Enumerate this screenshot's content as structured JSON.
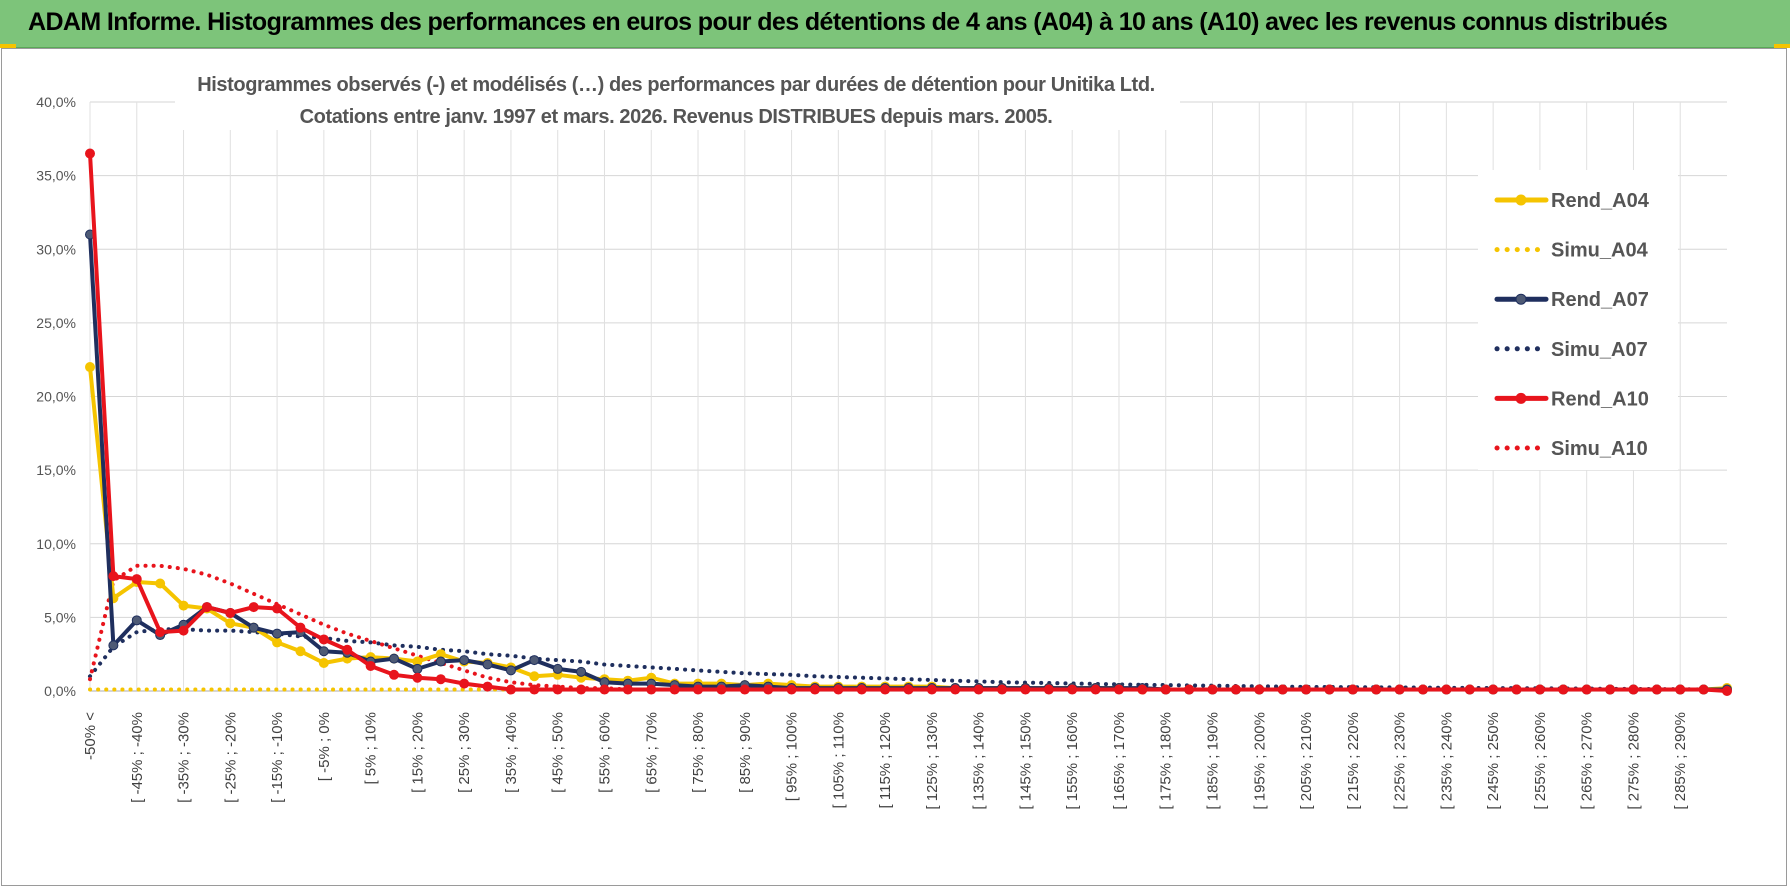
{
  "banner": {
    "title": "ADAM Informe. Histogrammes des performances en euros pour des détentions de 4 ans (A04) à 10 ans (A10) avec les revenus connus distribués",
    "bg_color": "#7dc47a"
  },
  "chart_data": {
    "type": "line",
    "title": "Histogrammes observés (-) et modélisés (…) des performances par durées de détention pour Unitika Ltd.",
    "subtitle": "Cotations entre janv. 1997 et mars. 2026.  Revenus DISTRIBUES depuis mars. 2005.",
    "xlabel": "",
    "ylabel": "",
    "ylim": [
      0,
      40
    ],
    "y_ticks": [
      "0,0%",
      "5,0%",
      "10,0%",
      "15,0%",
      "20,0%",
      "25,0%",
      "30,0%",
      "35,0%",
      "40,0%"
    ],
    "grid": true,
    "legend_position": "right",
    "categories": [
      "-50% <",
      "[ -50% ; -45%",
      "[ -45% ; -40%",
      "[ -40% ; -35%",
      "[ -35% ; -30%",
      "[ -30% ; -25%",
      "[ -25% ; -20%",
      "[ -20% ; -15%",
      "[ -15% ; -10%",
      "[ -10% ; -5%",
      "[ -5% ; 0%",
      "[ 0% ; 5%",
      "[ 5% ; 10%",
      "[ 10% ; 15%",
      "[ 15% ; 20%",
      "[ 20% ; 25%",
      "[ 25% ; 30%",
      "[ 30% ; 35%",
      "[ 35% ; 40%",
      "[ 40% ; 45%",
      "[ 45% ; 50%",
      "[ 50% ; 55%",
      "[ 55% ; 60%",
      "[ 60% ; 65%",
      "[ 65% ; 70%",
      "[ 70% ; 75%",
      "[ 75% ; 80%",
      "[ 80% ; 85%",
      "[ 85% ; 90%",
      "[ 90% ; 95%",
      "[ 95% ; 100%",
      "[ 100% ; 105%",
      "[ 105% ; 110%",
      "[ 110% ; 115%",
      "[ 115% ; 120%",
      "[ 120% ; 125%",
      "[ 125% ; 130%",
      "[ 130% ; 135%",
      "[ 135% ; 140%",
      "[ 140% ; 145%",
      "[ 145% ; 150%",
      "[ 150% ; 155%",
      "[ 155% ; 160%",
      "[ 160% ; 165%",
      "[ 165% ; 170%",
      "[ 170% ; 175%",
      "[ 175% ; 180%",
      "[ 180% ; 185%",
      "[ 185% ; 190%",
      "[ 190% ; 195%",
      "[ 195% ; 200%",
      "[ 200% ; 205%",
      "[ 205% ; 210%",
      "[ 210% ; 215%",
      "[ 215% ; 220%",
      "[ 220% ; 225%",
      "[ 225% ; 230%",
      "[ 230% ; 235%",
      "[ 235% ; 240%",
      "[ 240% ; 245%",
      "[ 245% ; 250%",
      "[ 250% ; 255%",
      "[ 255% ; 260%",
      "[ 260% ; 265%",
      "[ 265% ; 270%",
      "[ 270% ; 275%",
      "[ 275% ; 280%",
      "[ 280% ; 285%",
      "[ 285% ; 290%",
      "[ 290% ; 295%",
      "[ 295% ; 300%"
    ],
    "x_tick_labels_shown": [
      "-50% <",
      "[ -45% ; -40%",
      "[ -35% ; -30%",
      "[ -25% ; -20%",
      "[ -15% ; -10%",
      "[ -5% ; 0%",
      "[ 5% ; 10%",
      "[ 15% ; 20%",
      "[ 25% ; 30%",
      "[ 35% ; 40%",
      "[ 45% ; 50%",
      "[ 55% ; 60%",
      "[ 65% ; 70%",
      "[ 75% ; 80%",
      "[ 85% ; 90%",
      "[ 95% ; 100%",
      "[ 105% ; 110%",
      "[ 115% ; 120%",
      "[ 125% ; 130%",
      "[ 135% ; 140%",
      "[ 145% ; 150%",
      "[ 155% ; 160%",
      "[ 165% ; 170%",
      "[ 175% ; 180%",
      "[ 185% ; 190%",
      "[ 195% ; 200%",
      "[ 205% ; 210%",
      "[ 215% ; 220%",
      "[ 225% ; 230%",
      "[ 235% ; 240%",
      "[ 245% ; 250%",
      "[ 255% ; 260%",
      "[ 265% ; 270%",
      "[ 275% ; 280%",
      "[ 285% ; 290%"
    ],
    "series": [
      {
        "name": "Rend_A04",
        "style": "solid",
        "color": "#f5c400",
        "markers": true,
        "values": [
          22.0,
          6.3,
          7.4,
          7.3,
          5.8,
          5.6,
          4.6,
          4.3,
          3.3,
          2.7,
          1.9,
          2.2,
          2.3,
          2.2,
          2.0,
          2.5,
          2.0,
          1.9,
          1.6,
          1.0,
          1.1,
          0.9,
          0.8,
          0.7,
          0.9,
          0.5,
          0.5,
          0.5,
          0.4,
          0.5,
          0.4,
          0.3,
          0.3,
          0.3,
          0.3,
          0.3,
          0.3,
          0.2,
          0.2,
          0.2,
          0.2,
          0.2,
          0.2,
          0.2,
          0.2,
          0.1,
          0.1,
          0.1,
          0.1,
          0.1,
          0.1,
          0.1,
          0.1,
          0.1,
          0.1,
          0.1,
          0.1,
          0.1,
          0.1,
          0.1,
          0.1,
          0.1,
          0.1,
          0.1,
          0.1,
          0.1,
          0.1,
          0.1,
          0.1,
          0.1,
          0.2
        ]
      },
      {
        "name": "Simu_A04",
        "style": "dotted",
        "color": "#f5c400",
        "markers": false,
        "values": [
          0.1,
          0.1,
          0.1,
          0.1,
          0.1,
          0.1,
          0.1,
          0.1,
          0.1,
          0.1,
          0.1,
          0.1,
          0.1,
          0.1,
          0.1,
          0.1,
          0.1,
          0.1,
          0.1,
          0.1,
          0.1,
          0.1,
          0.1,
          0.1,
          0.1,
          0.1,
          0.1,
          0.1,
          0.1,
          0.1,
          0.1,
          0.1,
          0.1,
          0.1,
          0.1,
          0.1,
          0.1,
          0.1,
          0.1,
          0.1,
          0.1,
          0.1,
          0.1,
          0.1,
          0.1,
          0.1,
          0.1,
          0.1,
          0.1,
          0.1,
          0.1,
          0.1,
          0.1,
          0.1,
          0.1,
          0.1,
          0.1,
          0.1,
          0.1,
          0.1,
          0.1,
          0.1,
          0.1,
          0.1,
          0.1,
          0.1,
          0.1,
          0.1,
          0.1,
          0.1,
          0.1
        ]
      },
      {
        "name": "Rend_A07",
        "style": "solid",
        "color": "#1f2f5e",
        "markers": true,
        "values": [
          31.0,
          3.1,
          4.8,
          3.8,
          4.5,
          5.7,
          5.3,
          4.3,
          3.9,
          4.0,
          2.7,
          2.6,
          2.0,
          2.2,
          1.5,
          2.0,
          2.1,
          1.8,
          1.4,
          2.1,
          1.5,
          1.3,
          0.6,
          0.5,
          0.5,
          0.4,
          0.3,
          0.3,
          0.4,
          0.3,
          0.2,
          0.2,
          0.2,
          0.2,
          0.2,
          0.2,
          0.2,
          0.2,
          0.2,
          0.2,
          0.2,
          0.2,
          0.2,
          0.2,
          0.2,
          0.2,
          0.1,
          0.1,
          0.1,
          0.1,
          0.1,
          0.1,
          0.1,
          0.1,
          0.1,
          0.1,
          0.1,
          0.1,
          0.1,
          0.1,
          0.1,
          0.1,
          0.1,
          0.1,
          0.1,
          0.1,
          0.1,
          0.1,
          0.1,
          0.1,
          0.1
        ]
      },
      {
        "name": "Simu_A07",
        "style": "dotted",
        "color": "#1f2f5e",
        "markers": false,
        "values": [
          1.0,
          3.0,
          4.0,
          4.2,
          4.2,
          4.1,
          4.1,
          4.0,
          3.9,
          3.7,
          3.6,
          3.4,
          3.3,
          3.1,
          3.0,
          2.8,
          2.7,
          2.5,
          2.4,
          2.2,
          2.1,
          2.0,
          1.8,
          1.7,
          1.6,
          1.5,
          1.4,
          1.3,
          1.2,
          1.15,
          1.1,
          1.0,
          0.95,
          0.9,
          0.85,
          0.8,
          0.75,
          0.7,
          0.65,
          0.6,
          0.57,
          0.54,
          0.51,
          0.48,
          0.45,
          0.42,
          0.4,
          0.38,
          0.36,
          0.34,
          0.32,
          0.3,
          0.28,
          0.27,
          0.26,
          0.25,
          0.24,
          0.23,
          0.22,
          0.21,
          0.2,
          0.19,
          0.18,
          0.17,
          0.16,
          0.15,
          0.14,
          0.13,
          0.12,
          0.11,
          0.1
        ]
      },
      {
        "name": "Rend_A10",
        "style": "solid",
        "color": "#e8141c",
        "markers": true,
        "values": [
          36.5,
          7.8,
          7.6,
          4.0,
          4.1,
          5.7,
          5.3,
          5.7,
          5.6,
          4.3,
          3.5,
          2.8,
          1.7,
          1.1,
          0.9,
          0.8,
          0.5,
          0.3,
          0.1,
          0.1,
          0.1,
          0.1,
          0.1,
          0.1,
          0.1,
          0.1,
          0.1,
          0.1,
          0.1,
          0.1,
          0.1,
          0.1,
          0.1,
          0.1,
          0.1,
          0.1,
          0.1,
          0.1,
          0.1,
          0.1,
          0.1,
          0.1,
          0.1,
          0.1,
          0.1,
          0.1,
          0.1,
          0.1,
          0.1,
          0.1,
          0.1,
          0.1,
          0.1,
          0.1,
          0.1,
          0.1,
          0.1,
          0.1,
          0.1,
          0.1,
          0.1,
          0.1,
          0.1,
          0.1,
          0.1,
          0.1,
          0.1,
          0.1,
          0.1,
          0.1,
          0.0
        ]
      },
      {
        "name": "Simu_A10",
        "style": "dotted",
        "color": "#e8141c",
        "markers": false,
        "values": [
          0.8,
          7.5,
          8.5,
          8.5,
          8.3,
          7.9,
          7.3,
          6.6,
          5.9,
          5.2,
          4.5,
          3.9,
          3.4,
          2.9,
          2.4,
          1.9,
          1.4,
          0.9,
          0.6,
          0.4,
          0.3,
          0.2,
          0.2,
          0.1,
          0.1,
          0.1,
          0.1,
          0.1,
          0.1,
          0.1,
          0.1,
          0.1,
          0.1,
          0.1,
          0.1,
          0.1,
          0.1,
          0.1,
          0.1,
          0.1,
          0.1,
          0.1,
          0.1,
          0.1,
          0.1,
          0.1,
          0.1,
          0.1,
          0.1,
          0.1,
          0.1,
          0.1,
          0.1,
          0.1,
          0.1,
          0.1,
          0.1,
          0.1,
          0.1,
          0.1,
          0.1,
          0.1,
          0.1,
          0.1,
          0.1,
          0.1,
          0.1,
          0.1,
          0.1,
          0.1,
          0.1
        ]
      }
    ]
  }
}
